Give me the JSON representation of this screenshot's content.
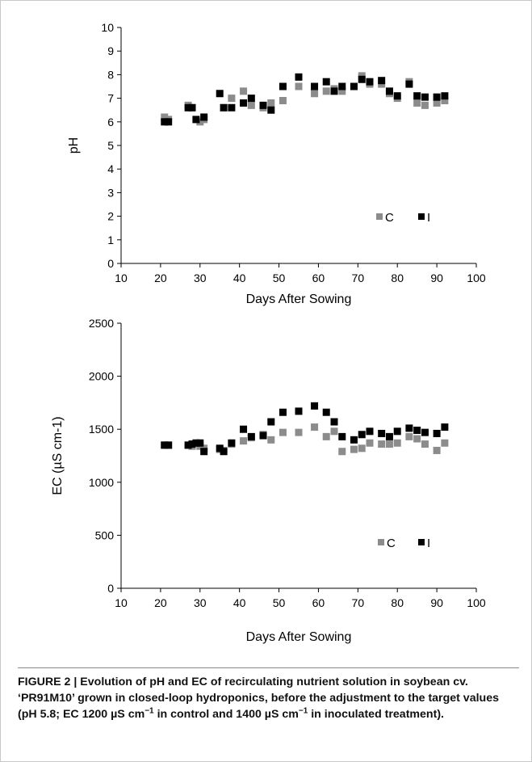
{
  "chart_data": [
    {
      "type": "scatter",
      "xlabel": "Days After Sowing",
      "ylabel": "pH",
      "xlim": [
        10,
        100
      ],
      "ylim": [
        0,
        10
      ],
      "xticks": [
        "10",
        "20",
        "30",
        "40",
        "50",
        "60",
        "70",
        "80",
        "90",
        "100"
      ],
      "yticks": [
        "0",
        "1",
        "2",
        "3",
        "4",
        "5",
        "6",
        "7",
        "8",
        "9",
        "10"
      ],
      "grid": false,
      "legend_position": "bottom-right",
      "series": [
        {
          "name": "C",
          "color": "#8c8c8c",
          "points": [
            [
              21,
              6.2
            ],
            [
              22,
              6.1
            ],
            [
              27,
              6.7
            ],
            [
              28,
              6.6
            ],
            [
              30,
              6.0
            ],
            [
              31,
              6.1
            ],
            [
              36,
              6.6
            ],
            [
              38,
              7.0
            ],
            [
              41,
              7.3
            ],
            [
              43,
              6.7
            ],
            [
              46,
              6.6
            ],
            [
              48,
              6.8
            ],
            [
              51,
              6.9
            ],
            [
              55,
              7.5
            ],
            [
              59,
              7.2
            ],
            [
              62,
              7.3
            ],
            [
              64,
              7.4
            ],
            [
              66,
              7.3
            ],
            [
              69,
              7.5
            ],
            [
              71,
              7.95
            ],
            [
              73,
              7.6
            ],
            [
              76,
              7.6
            ],
            [
              78,
              7.2
            ],
            [
              80,
              7.0
            ],
            [
              83,
              7.7
            ],
            [
              85,
              6.8
            ],
            [
              87,
              6.7
            ],
            [
              90,
              6.8
            ],
            [
              92,
              6.9
            ]
          ]
        },
        {
          "name": "I",
          "color": "#000000",
          "points": [
            [
              21,
              6.0
            ],
            [
              22,
              6.0
            ],
            [
              27,
              6.6
            ],
            [
              28,
              6.6
            ],
            [
              29,
              6.1
            ],
            [
              31,
              6.2
            ],
            [
              35,
              7.2
            ],
            [
              36,
              6.6
            ],
            [
              38,
              6.6
            ],
            [
              41,
              6.8
            ],
            [
              43,
              7.0
            ],
            [
              46,
              6.7
            ],
            [
              48,
              6.5
            ],
            [
              51,
              7.5
            ],
            [
              55,
              7.9
            ],
            [
              59,
              7.5
            ],
            [
              62,
              7.7
            ],
            [
              64,
              7.3
            ],
            [
              66,
              7.5
            ],
            [
              69,
              7.5
            ],
            [
              71,
              7.8
            ],
            [
              73,
              7.7
            ],
            [
              76,
              7.75
            ],
            [
              78,
              7.3
            ],
            [
              80,
              7.1
            ],
            [
              83,
              7.6
            ],
            [
              85,
              7.1
            ],
            [
              87,
              7.05
            ],
            [
              90,
              7.05
            ],
            [
              92,
              7.1
            ]
          ]
        }
      ]
    },
    {
      "type": "scatter",
      "xlabel": "Days After Sowing",
      "ylabel": "EC (µS cm-1)",
      "xlim": [
        10,
        100
      ],
      "ylim": [
        0,
        2500
      ],
      "xticks": [
        "10",
        "20",
        "30",
        "40",
        "50",
        "60",
        "70",
        "80",
        "90",
        "100"
      ],
      "yticks": [
        "0",
        "500",
        "1000",
        "1500",
        "2000",
        "2500"
      ],
      "grid": false,
      "legend_position": "bottom-right",
      "series": [
        {
          "name": "C",
          "color": "#8c8c8c",
          "points": [
            [
              21,
              1350
            ],
            [
              22,
              1350
            ],
            [
              27,
              1350
            ],
            [
              28,
              1340
            ],
            [
              30,
              1340
            ],
            [
              31,
              1320
            ],
            [
              35,
              1310
            ],
            [
              36,
              1300
            ],
            [
              38,
              1360
            ],
            [
              41,
              1390
            ],
            [
              43,
              1420
            ],
            [
              46,
              1450
            ],
            [
              48,
              1400
            ],
            [
              51,
              1470
            ],
            [
              55,
              1470
            ],
            [
              59,
              1520
            ],
            [
              62,
              1430
            ],
            [
              64,
              1480
            ],
            [
              66,
              1290
            ],
            [
              69,
              1310
            ],
            [
              71,
              1320
            ],
            [
              73,
              1370
            ],
            [
              76,
              1360
            ],
            [
              78,
              1360
            ],
            [
              80,
              1370
            ],
            [
              83,
              1430
            ],
            [
              85,
              1410
            ],
            [
              87,
              1360
            ],
            [
              90,
              1300
            ],
            [
              92,
              1370
            ]
          ]
        },
        {
          "name": "I",
          "color": "#000000",
          "points": [
            [
              21,
              1350
            ],
            [
              22,
              1350
            ],
            [
              27,
              1350
            ],
            [
              28,
              1360
            ],
            [
              29,
              1370
            ],
            [
              30,
              1370
            ],
            [
              31,
              1290
            ],
            [
              35,
              1320
            ],
            [
              36,
              1290
            ],
            [
              38,
              1370
            ],
            [
              41,
              1500
            ],
            [
              43,
              1430
            ],
            [
              46,
              1440
            ],
            [
              48,
              1570
            ],
            [
              51,
              1660
            ],
            [
              55,
              1670
            ],
            [
              59,
              1720
            ],
            [
              62,
              1660
            ],
            [
              64,
              1570
            ],
            [
              66,
              1430
            ],
            [
              69,
              1400
            ],
            [
              71,
              1450
            ],
            [
              73,
              1480
            ],
            [
              76,
              1460
            ],
            [
              78,
              1430
            ],
            [
              80,
              1480
            ],
            [
              83,
              1510
            ],
            [
              85,
              1490
            ],
            [
              87,
              1470
            ],
            [
              90,
              1460
            ],
            [
              92,
              1520
            ]
          ]
        }
      ]
    }
  ],
  "caption": {
    "label": "FIGURE 2 | ",
    "text_1": "Evolution of pH and EC of recirculating nutrient solution in soybean cv. ‘PR91M10’ grown in closed-loop hydroponics, before the adjustment to the target values (pH 5.8; EC 1200 µS cm",
    "sup_1": "−1",
    "text_2": " in control and 1400 µS cm",
    "sup_2": "−1",
    "text_3": " in inoculated treatment)."
  }
}
